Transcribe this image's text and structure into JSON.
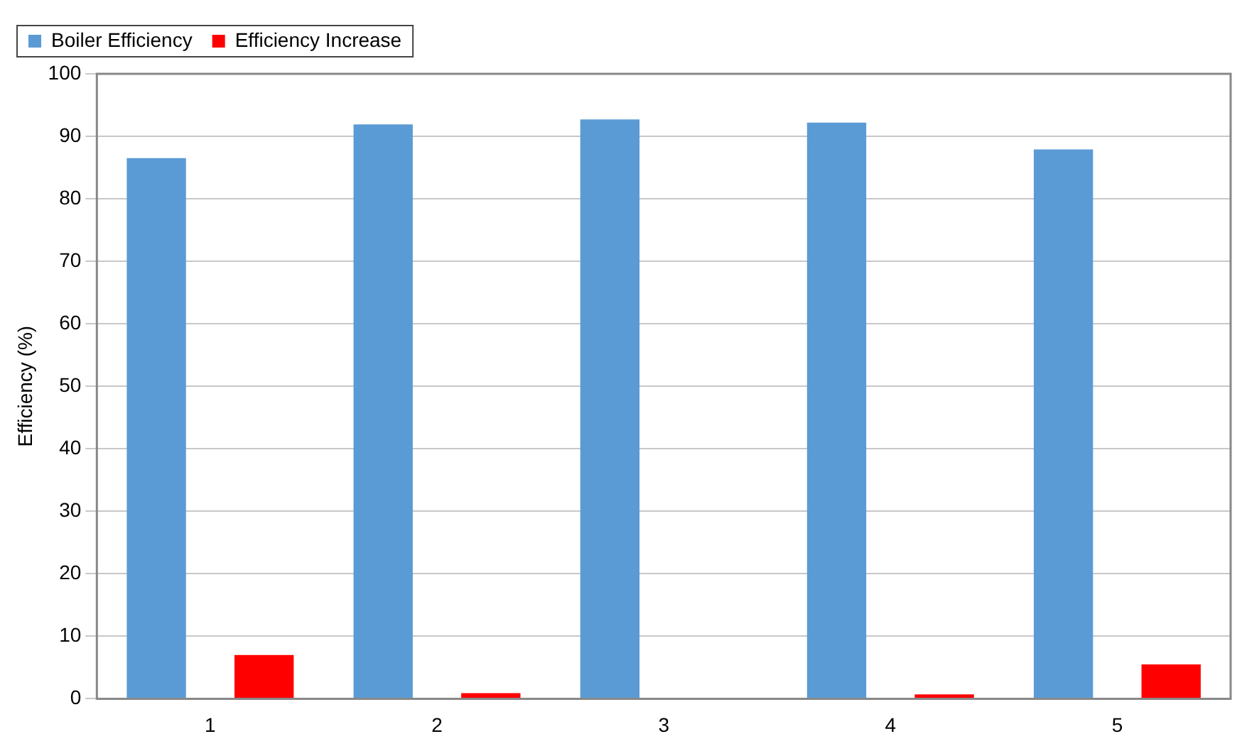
{
  "chart_data": {
    "type": "bar",
    "ylabel": "Efficiency (%)",
    "categories": [
      "1",
      "2",
      "3",
      "4",
      "5"
    ],
    "series": [
      {
        "name": "Boiler Efficiency",
        "color": "#5b9bd5",
        "values": [
          86.5,
          91.9,
          92.7,
          92.2,
          87.9
        ]
      },
      {
        "name": "Efficiency Increase",
        "color": "#ff0000",
        "values": [
          7.0,
          0.9,
          0,
          0.7,
          5.5
        ]
      }
    ],
    "ylim": [
      0,
      100
    ],
    "yticks": [
      0,
      10,
      20,
      30,
      40,
      50,
      60,
      70,
      80,
      90,
      100
    ],
    "grid": "y",
    "legend": "top left"
  }
}
